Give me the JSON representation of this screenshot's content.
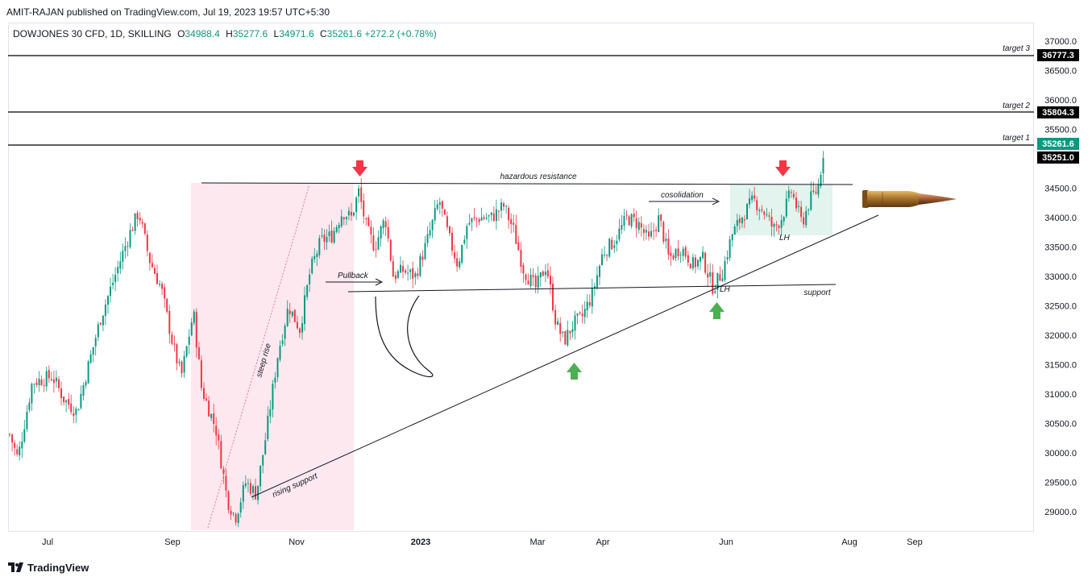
{
  "header": {
    "publisher_line": "AMIT-RAJAN published on TradingView.com, Jul 19, 2023 19:57 UTC+5:30"
  },
  "symbol": {
    "name": "DOWJONES 30 CFD, 1D, SKILLING",
    "o_key": "O",
    "o_val": "34988.4",
    "h_key": "H",
    "h_val": "35277.6",
    "l_key": "L",
    "l_val": "34971.6",
    "c_key": "C",
    "c_val": "35261.6",
    "change": "+272.2 (+0.78%)"
  },
  "footer": {
    "brand": "TradingView",
    "logo_icon": "tradingview-logo-icon"
  },
  "colors": {
    "up": "#089981",
    "down": "#f23645",
    "accent": "#089981",
    "zone_pink": "#fce8ee",
    "zone_green": "#d7efe9",
    "arrow_red": "#f23645",
    "arrow_green": "#4caf50"
  },
  "chart_data": {
    "type": "candlestick",
    "y_axis": {
      "ticks": [
        "37000.0",
        "36500.0",
        "36000.0",
        "35500.0",
        "35000.0",
        "34500.0",
        "34000.0",
        "33500.0",
        "33000.0",
        "32500.0",
        "32000.0",
        "31500.0",
        "31000.0",
        "30500.0",
        "30000.0",
        "29500.0",
        "29000.0"
      ],
      "range": [
        28700,
        37200
      ]
    },
    "x_axis": {
      "ticks": [
        "Jul",
        "Sep",
        "Nov",
        "2023",
        "Mar",
        "Apr",
        "Jun",
        "Aug",
        "Sep"
      ]
    },
    "last_price": {
      "value": 35261.6,
      "label": "35261.6"
    },
    "price_labels": [
      {
        "name": "target 3",
        "value": 36777.3,
        "label": "36777.3"
      },
      {
        "name": "target 2",
        "value": 35804.3,
        "label": "35804.3"
      },
      {
        "name": "target 1",
        "value": 35251.0,
        "label": "35251.0"
      }
    ],
    "annotations": [
      "hazardous resistance",
      "cosolidation",
      "Pullback",
      "support",
      "rising support",
      "steep rise",
      "LH",
      "LH"
    ],
    "anchors": [
      {
        "x": 10,
        "y": 30400
      },
      {
        "x": 22,
        "y": 29900
      },
      {
        "x": 40,
        "y": 31200
      },
      {
        "x": 65,
        "y": 31300
      },
      {
        "x": 80,
        "y": 30900
      },
      {
        "x": 95,
        "y": 30700
      },
      {
        "x": 110,
        "y": 31500
      },
      {
        "x": 125,
        "y": 32300
      },
      {
        "x": 140,
        "y": 32900
      },
      {
        "x": 160,
        "y": 33700
      },
      {
        "x": 172,
        "y": 34100
      },
      {
        "x": 185,
        "y": 33300
      },
      {
        "x": 200,
        "y": 32800
      },
      {
        "x": 215,
        "y": 31800
      },
      {
        "x": 225,
        "y": 31300
      },
      {
        "x": 240,
        "y": 32400
      },
      {
        "x": 250,
        "y": 31100
      },
      {
        "x": 268,
        "y": 30400
      },
      {
        "x": 282,
        "y": 29200
      },
      {
        "x": 292,
        "y": 28900
      },
      {
        "x": 305,
        "y": 29500
      },
      {
        "x": 318,
        "y": 29300
      },
      {
        "x": 330,
        "y": 30300
      },
      {
        "x": 345,
        "y": 31700
      },
      {
        "x": 358,
        "y": 32500
      },
      {
        "x": 372,
        "y": 32100
      },
      {
        "x": 385,
        "y": 33100
      },
      {
        "x": 398,
        "y": 33600
      },
      {
        "x": 412,
        "y": 33700
      },
      {
        "x": 425,
        "y": 34100
      },
      {
        "x": 436,
        "y": 34000
      },
      {
        "x": 445,
        "y": 34450
      },
      {
        "x": 455,
        "y": 33800
      },
      {
        "x": 465,
        "y": 33500
      },
      {
        "x": 478,
        "y": 34000
      },
      {
        "x": 488,
        "y": 33000
      },
      {
        "x": 500,
        "y": 33100
      },
      {
        "x": 515,
        "y": 33000
      },
      {
        "x": 530,
        "y": 33600
      },
      {
        "x": 545,
        "y": 34300
      },
      {
        "x": 556,
        "y": 33700
      },
      {
        "x": 568,
        "y": 33200
      },
      {
        "x": 580,
        "y": 33900
      },
      {
        "x": 595,
        "y": 34000
      },
      {
        "x": 610,
        "y": 34000
      },
      {
        "x": 625,
        "y": 34200
      },
      {
        "x": 637,
        "y": 33800
      },
      {
        "x": 650,
        "y": 33100
      },
      {
        "x": 665,
        "y": 32800
      },
      {
        "x": 678,
        "y": 33200
      },
      {
        "x": 690,
        "y": 32200
      },
      {
        "x": 700,
        "y": 31900
      },
      {
        "x": 712,
        "y": 32200
      },
      {
        "x": 722,
        "y": 32300
      },
      {
        "x": 735,
        "y": 32700
      },
      {
        "x": 748,
        "y": 33400
      },
      {
        "x": 762,
        "y": 33600
      },
      {
        "x": 778,
        "y": 34000
      },
      {
        "x": 792,
        "y": 33900
      },
      {
        "x": 805,
        "y": 33600
      },
      {
        "x": 818,
        "y": 34000
      },
      {
        "x": 830,
        "y": 33300
      },
      {
        "x": 845,
        "y": 33500
      },
      {
        "x": 860,
        "y": 33200
      },
      {
        "x": 872,
        "y": 33300
      },
      {
        "x": 885,
        "y": 32800
      },
      {
        "x": 897,
        "y": 33100
      },
      {
        "x": 908,
        "y": 33700
      },
      {
        "x": 920,
        "y": 34000
      },
      {
        "x": 935,
        "y": 34300
      },
      {
        "x": 948,
        "y": 34100
      },
      {
        "x": 960,
        "y": 33800
      },
      {
        "x": 970,
        "y": 34000
      },
      {
        "x": 982,
        "y": 34450
      },
      {
        "x": 995,
        "y": 33900
      },
      {
        "x": 1005,
        "y": 34300
      },
      {
        "x": 1015,
        "y": 34500
      },
      {
        "x": 1020,
        "y": 34950
      },
      {
        "x": 1023,
        "y": 35260
      }
    ]
  }
}
